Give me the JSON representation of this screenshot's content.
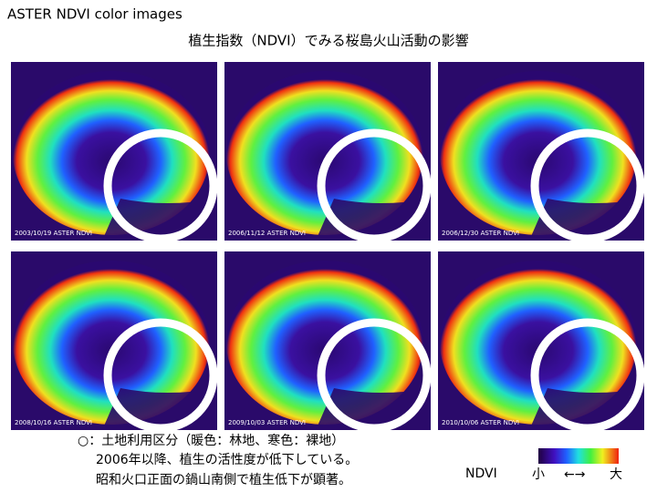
{
  "header": {
    "title": "ASTER  NDVI color images",
    "subtitle": "植生指数（NDVI）でみる桜島火山活動の影響"
  },
  "images": [
    {
      "label": "2003/10/19  ASTER  NDVI"
    },
    {
      "label": "2006/11/12  ASTER NDVI"
    },
    {
      "label": "2006/12/30  ASTER NDVI"
    },
    {
      "label": "2008/10/16  ASTER NDVI"
    },
    {
      "label": "2009/10/03  ASTER NDVI"
    },
    {
      "label": "2010/10/06  ASTER NDVI"
    }
  ],
  "notes": [
    "○：土地利用区分（暖色：林地、寒色：裸地）",
    "2006年以降、植生の活性度が低下している。",
    "昭和火口正面の鍋山南側で植生低下が顕著。"
  ],
  "legend": {
    "title": "NDVI",
    "low": "小",
    "arrow": "←→",
    "high": "大"
  }
}
